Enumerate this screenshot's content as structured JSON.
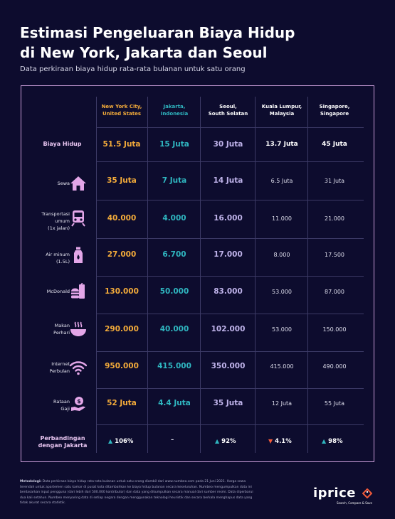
{
  "header": {
    "title_line1": "Estimasi Pengeluaran Biaya Hidup",
    "title_line2": "di New York, Jakarta dan Seoul",
    "subtitle": "Data perkiraan biaya hidup rata-rata bulanan untuk satu orang"
  },
  "columns": [
    {
      "line1": "New York City,",
      "line2": "United States",
      "color": "#f3ab3a"
    },
    {
      "line1": "Jakarta,",
      "line2": "Indonesia",
      "color": "#2fb6c0"
    },
    {
      "line1": "Seoul,",
      "line2": "South Selatan",
      "color": "#ffffff"
    },
    {
      "line1": "Kuala Lumpur,",
      "line2": "Malaysia",
      "color": "#ffffff"
    },
    {
      "line1": "Singapore,",
      "line2": "Singapore",
      "color": "#ffffff"
    }
  ],
  "rows": [
    {
      "label": "Biaya Hidup",
      "icon": "",
      "values": [
        "51.5 Juta",
        "15 Juta",
        "30 Juta",
        "13.7 Juta",
        "45 Juta"
      ]
    },
    {
      "label": "Sewa",
      "icon": "house-icon",
      "values": [
        "35 Juta",
        "7 Juta",
        "14 Juta",
        "6.5 Juta",
        "31 Juta"
      ]
    },
    {
      "label_lines": [
        "Transportasi",
        "umum",
        "(1x jalan)"
      ],
      "icon": "train-icon",
      "values": [
        "40.000",
        "4.000",
        "16.000",
        "11.000",
        "21.000"
      ]
    },
    {
      "label_lines": [
        "Air minum",
        "(1.5L)"
      ],
      "icon": "water-bottle-icon",
      "values": [
        "27.000",
        "6.700",
        "17.000",
        "8.000",
        "17.500"
      ]
    },
    {
      "label": "McDonald",
      "icon": "burger-icon",
      "values": [
        "130.000",
        "50.000",
        "83.000",
        "53.000",
        "87.000"
      ]
    },
    {
      "label_lines": [
        "Makan",
        "Perhari"
      ],
      "icon": "bowl-icon",
      "values": [
        "290.000",
        "40.000",
        "102.000",
        "53.000",
        "150.000"
      ]
    },
    {
      "label_lines": [
        "Internet",
        "Perbulan"
      ],
      "icon": "wifi-icon",
      "values": [
        "950.000",
        "415.000",
        "350.000",
        "415.000",
        "490.000"
      ]
    },
    {
      "label_lines": [
        "Rataan",
        "Gaji"
      ],
      "icon": "salary-icon",
      "values": [
        "52 Juta",
        "4.4 Juta",
        "35 Juta",
        "12 Juta",
        "55 Juta"
      ]
    }
  ],
  "comparison": {
    "label_line1": "Perbandingan",
    "label_line2": "dengan Jakarta",
    "values": [
      {
        "arrow": "▲",
        "direction": "up",
        "text": "106%"
      },
      {
        "arrow": "",
        "direction": "none",
        "text": "–"
      },
      {
        "arrow": "▲",
        "direction": "up",
        "text": "92%"
      },
      {
        "arrow": "▼",
        "direction": "down",
        "text": "4.1%"
      },
      {
        "arrow": "▲",
        "direction": "up",
        "text": "98%"
      }
    ]
  },
  "footnote": {
    "label": "Metodologi:",
    "text": "Data perkiraan biaya hidup rata-rata bulanan untuk satu orang diambil dari www.numbeo.com pada 21 Juni 2021. Harga sewa terendah untuk apartemen satu kamar di pusat kota ditambahkan ke biaya hidup bulanan secara keseluruhan. Numbeo mengumpulkan data ini berdasarkan input pengguna (dari lebih dari 500.000 kontributor) dan data yang dikumpulkan secara manual dari sumber resmi. Data diperbarui dua kali setahun. Numbeo menyaring data di setiap negara dengan menggunakan teknologi heuristik dan secara berkala menghapus data yang tidak akurat secara statistik."
  },
  "brand": {
    "logo": "iprice",
    "tagline": "Search, Compare & Save"
  },
  "colors": {
    "background": "#0d0c2e",
    "panel_border": "#c79bd7",
    "new_york": "#f3ab3a",
    "jakarta": "#2fb6c0",
    "seoul": "#bfb3ea",
    "icon": "#e3a6e8",
    "arrow_up": "#2fb6c0",
    "arrow_down": "#f15a3a"
  }
}
